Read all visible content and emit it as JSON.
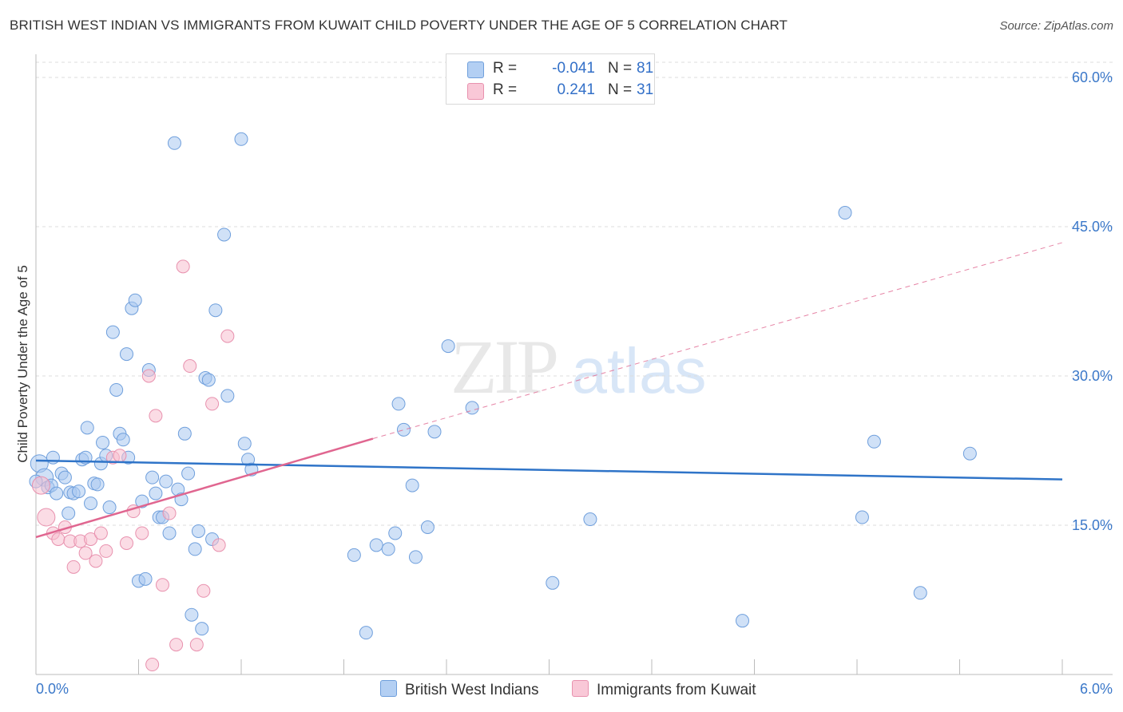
{
  "title": "BRITISH WEST INDIAN VS IMMIGRANTS FROM KUWAIT CHILD POVERTY UNDER THE AGE OF 5 CORRELATION CHART",
  "source": "Source: ZipAtlas.com",
  "watermark": {
    "zip": "ZIP",
    "atlas": "atlas"
  },
  "colors": {
    "blue_fill": "#a9c8f0",
    "blue_stroke": "#6f9fdc",
    "blue_line": "#2f74c8",
    "pink_fill": "#f7bfd0",
    "pink_stroke": "#e891ae",
    "pink_line": "#e06690",
    "axis_label": "#3b78c9",
    "grid": "#dddddd"
  },
  "legend": {
    "r_label": "R =",
    "n_label": "N =",
    "series": [
      {
        "name": "British West Indians",
        "r": "-0.041",
        "n": "81"
      },
      {
        "name": "Immigrants from Kuwait",
        "r": "0.241",
        "n": "31"
      }
    ]
  },
  "chart_data": {
    "type": "scatter",
    "title": "BRITISH WEST INDIAN VS IMMIGRANTS FROM KUWAIT CHILD POVERTY UNDER THE AGE OF 5 CORRELATION CHART",
    "xlabel": "",
    "ylabel": "Child Poverty Under the Age of 5",
    "xlim": [
      0,
      6
    ],
    "ylim": [
      0,
      60
    ],
    "x_tick_labels": [
      "0.0%",
      "6.0%"
    ],
    "y_ticks": [
      15,
      30,
      45,
      60
    ],
    "y_tick_labels": [
      "15.0%",
      "30.0%",
      "45.0%",
      "60.0%"
    ],
    "series": [
      {
        "name": "British West Indians",
        "color": "#a9c8f0",
        "trend": {
          "x": [
            0,
            6
          ],
          "y": [
            21.5,
            19.6
          ],
          "dashed": false
        },
        "points": [
          [
            0.02,
            21.2
          ],
          [
            0.05,
            19.8
          ],
          [
            0.07,
            18.8
          ],
          [
            0.09,
            19.0
          ],
          [
            0.1,
            21.8
          ],
          [
            0.12,
            18.2
          ],
          [
            0.15,
            20.2
          ],
          [
            0.17,
            19.8
          ],
          [
            0.19,
            16.2
          ],
          [
            0.2,
            18.3
          ],
          [
            0.22,
            18.2
          ],
          [
            0.25,
            18.4
          ],
          [
            0.27,
            21.6
          ],
          [
            0.29,
            21.8
          ],
          [
            0.3,
            24.8
          ],
          [
            0.32,
            17.2
          ],
          [
            0.34,
            19.2
          ],
          [
            0.36,
            19.1
          ],
          [
            0.38,
            21.2
          ],
          [
            0.39,
            23.3
          ],
          [
            0.41,
            22.0
          ],
          [
            0.43,
            16.8
          ],
          [
            0.45,
            34.4
          ],
          [
            0.47,
            28.6
          ],
          [
            0.49,
            24.2
          ],
          [
            0.51,
            23.6
          ],
          [
            0.53,
            32.2
          ],
          [
            0.54,
            21.8
          ],
          [
            0.56,
            36.8
          ],
          [
            0.58,
            37.6
          ],
          [
            0.6,
            9.4
          ],
          [
            0.62,
            17.4
          ],
          [
            0.64,
            9.6
          ],
          [
            0.66,
            30.6
          ],
          [
            0.68,
            19.8
          ],
          [
            0.7,
            18.2
          ],
          [
            0.72,
            15.8
          ],
          [
            0.74,
            15.8
          ],
          [
            0.76,
            19.4
          ],
          [
            0.78,
            14.2
          ],
          [
            0.81,
            53.4
          ],
          [
            0.83,
            18.6
          ],
          [
            0.85,
            17.6
          ],
          [
            0.87,
            24.2
          ],
          [
            0.89,
            20.2
          ],
          [
            0.91,
            6.0
          ],
          [
            0.93,
            12.6
          ],
          [
            0.95,
            14.4
          ],
          [
            0.97,
            4.6
          ],
          [
            0.99,
            29.8
          ],
          [
            1.01,
            29.6
          ],
          [
            1.03,
            13.6
          ],
          [
            1.05,
            36.6
          ],
          [
            1.1,
            44.2
          ],
          [
            1.12,
            28.0
          ],
          [
            1.2,
            53.8
          ],
          [
            1.22,
            23.2
          ],
          [
            1.24,
            21.6
          ],
          [
            1.26,
            20.6
          ],
          [
            1.86,
            12.0
          ],
          [
            1.93,
            4.2
          ],
          [
            1.99,
            13.0
          ],
          [
            2.06,
            12.6
          ],
          [
            2.1,
            14.2
          ],
          [
            2.12,
            27.2
          ],
          [
            2.15,
            24.6
          ],
          [
            2.2,
            19.0
          ],
          [
            2.22,
            11.8
          ],
          [
            2.29,
            14.8
          ],
          [
            2.33,
            24.4
          ],
          [
            2.41,
            33.0
          ],
          [
            2.55,
            26.8
          ],
          [
            3.02,
            9.2
          ],
          [
            3.24,
            15.6
          ],
          [
            4.13,
            5.4
          ],
          [
            4.73,
            46.4
          ],
          [
            4.83,
            15.8
          ],
          [
            4.9,
            23.4
          ],
          [
            5.17,
            8.2
          ],
          [
            5.46,
            22.2
          ],
          [
            0.0,
            19.4
          ]
        ]
      },
      {
        "name": "Immigrants from Kuwait",
        "color": "#f7bfd0",
        "trend": {
          "x": [
            0,
            1.97
          ],
          "y": [
            13.8,
            23.7
          ],
          "dashed": false,
          "extension": {
            "x": [
              1.97,
              6
            ],
            "y": [
              23.7,
              43.4
            ],
            "dashed": true
          }
        },
        "points": [
          [
            0.03,
            19.0
          ],
          [
            0.06,
            15.8
          ],
          [
            0.1,
            14.2
          ],
          [
            0.13,
            13.6
          ],
          [
            0.17,
            14.8
          ],
          [
            0.2,
            13.4
          ],
          [
            0.22,
            10.8
          ],
          [
            0.26,
            13.4
          ],
          [
            0.29,
            12.2
          ],
          [
            0.32,
            13.6
          ],
          [
            0.35,
            11.4
          ],
          [
            0.38,
            14.2
          ],
          [
            0.41,
            12.4
          ],
          [
            0.45,
            21.8
          ],
          [
            0.49,
            22.0
          ],
          [
            0.53,
            13.2
          ],
          [
            0.57,
            16.4
          ],
          [
            0.62,
            14.2
          ],
          [
            0.66,
            30.0
          ],
          [
            0.7,
            26.0
          ],
          [
            0.74,
            9.0
          ],
          [
            0.78,
            16.2
          ],
          [
            0.82,
            3.0
          ],
          [
            0.86,
            41.0
          ],
          [
            0.9,
            31.0
          ],
          [
            0.94,
            3.0
          ],
          [
            0.98,
            8.4
          ],
          [
            1.03,
            27.2
          ],
          [
            1.07,
            13.0
          ],
          [
            1.12,
            34.0
          ],
          [
            0.68,
            1.0
          ]
        ]
      }
    ]
  }
}
